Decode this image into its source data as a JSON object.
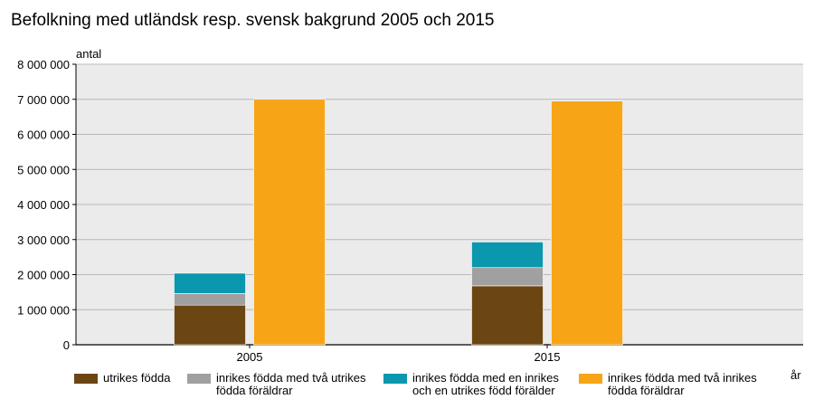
{
  "chart_data": {
    "type": "bar",
    "stacked_groups": true,
    "title": "Befolkning med utländsk resp. svensk bakgrund 2005 och 2015",
    "ylabel": "antal",
    "xlabel": "år",
    "ylim": [
      0,
      8000000
    ],
    "yticks": [
      0,
      1000000,
      2000000,
      3000000,
      4000000,
      5000000,
      6000000,
      7000000,
      8000000
    ],
    "ytick_labels": [
      "0",
      "1 000 000",
      "2 000 000",
      "3 000 000",
      "4 000 000",
      "5 000 000",
      "6 000 000",
      "7 000 000",
      "8 000 000"
    ],
    "categories": [
      "2005",
      "2015"
    ],
    "grid": true,
    "legend_position": "bottom",
    "series": [
      {
        "name": "utrikes födda",
        "color": "#6b4613",
        "stack": "a",
        "values": [
          1130000,
          1680000
        ]
      },
      {
        "name": "inrikes födda med två utrikes födda föräldrar",
        "color": "#a0a0a0",
        "stack": "a",
        "values": [
          330000,
          520000
        ]
      },
      {
        "name": "inrikes födda med en inrikes och en utrikes född förälder",
        "color": "#0b97ad",
        "stack": "a",
        "values": [
          580000,
          730000
        ]
      },
      {
        "name": "inrikes födda med två inrikes födda föräldrar",
        "color": "#f7a416",
        "stack": "b",
        "values": [
          7000000,
          6950000
        ]
      }
    ],
    "legend_lines": [
      [
        "utrikes födda"
      ],
      [
        "inrikes födda med två utrikes",
        "födda föräldrar"
      ],
      [
        "inrikes födda med en inrikes",
        "och en utrikes född förälder"
      ],
      [
        "inrikes födda med två inrikes",
        "födda föräldrar"
      ]
    ],
    "colors": {
      "plot_bg": "#ebebeb",
      "grid": "#b8b8b8",
      "axis": "#000000"
    }
  }
}
